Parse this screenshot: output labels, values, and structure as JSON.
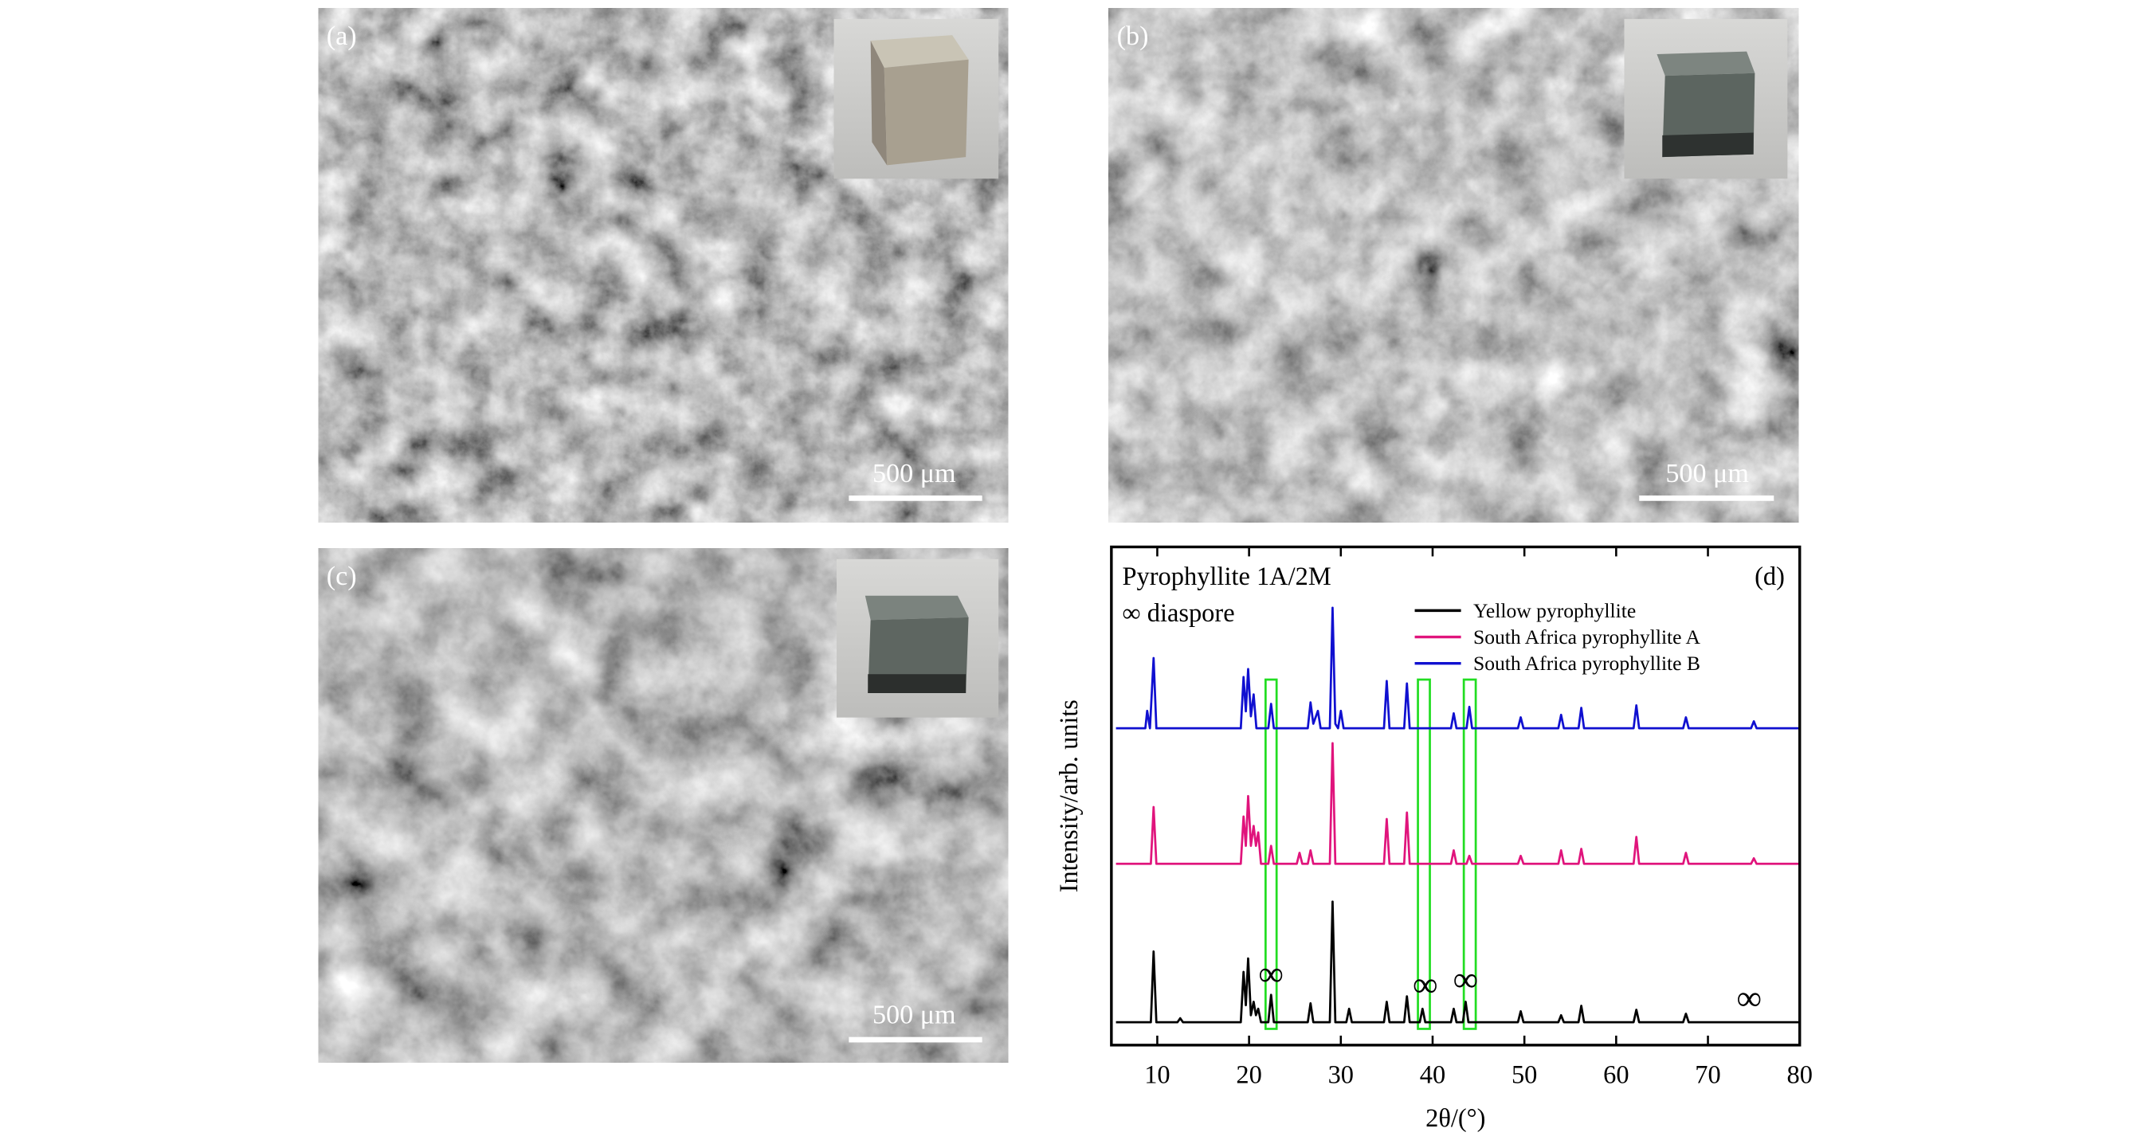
{
  "panels": [
    {
      "label": "(a)",
      "scale_bar": "500 μm"
    },
    {
      "label": "(b)",
      "scale_bar": "500 μm"
    },
    {
      "label": "(c)",
      "scale_bar": "500 μm"
    }
  ],
  "chart_data": {
    "type": "line",
    "title": "Pyrophyllite 1A/2M",
    "subtitle": "∞ diaspore",
    "panel_label": "(d)",
    "x_label": "2θ/(°)",
    "y_label": "Intensity/arb. units",
    "xlim": [
      5,
      80
    ],
    "ylim": [
      0,
      100
    ],
    "xticks": [
      10,
      20,
      30,
      40,
      50,
      60,
      70,
      80
    ],
    "legend": "top-right",
    "highlight_bands": [
      [
        21.8,
        23.0
      ],
      [
        38.4,
        39.7
      ],
      [
        43.4,
        44.7
      ]
    ],
    "annotations": [
      {
        "text": "∞",
        "x": 22.4,
        "y": 13.6
      },
      {
        "text": "∞",
        "x": 39.2,
        "y": 11.4
      },
      {
        "text": "∞",
        "x": 43.6,
        "y": 12.5
      },
      {
        "text": "∞",
        "x": 74.5,
        "y": 8.7
      }
    ],
    "series": [
      {
        "name": "Yellow pyrophyllite",
        "color": "#000000",
        "x": [
          5.5,
          9.3,
          9.6,
          9.9,
          12.2,
          12.5,
          12.8,
          19.1,
          19.4,
          19.65,
          19.9,
          20.2,
          20.5,
          20.75,
          21.0,
          21.3,
          22.1,
          22.4,
          22.7,
          26.4,
          26.7,
          27.0,
          28.8,
          29.1,
          29.4,
          30.6,
          30.9,
          31.2,
          34.7,
          35.0,
          35.3,
          36.9,
          37.2,
          37.5,
          38.6,
          38.9,
          39.2,
          42.0,
          42.3,
          42.6,
          43.3,
          43.6,
          43.9,
          49.3,
          49.6,
          49.9,
          53.7,
          54.0,
          54.3,
          55.9,
          56.2,
          56.5,
          61.9,
          62.2,
          62.5,
          67.3,
          67.6,
          67.9,
          80
        ],
        "values": [
          4.6,
          4.6,
          18.8,
          4.6,
          4.6,
          5.4,
          4.6,
          4.6,
          14.7,
          8,
          17.4,
          6,
          8.7,
          6,
          7.3,
          4.6,
          4.6,
          10.1,
          4.6,
          4.6,
          8.4,
          4.6,
          4.6,
          28.8,
          4.6,
          4.6,
          7.3,
          4.6,
          4.6,
          8.7,
          4.6,
          4.6,
          9.8,
          4.6,
          4.6,
          7.3,
          4.6,
          4.6,
          7.3,
          4.6,
          4.6,
          8.7,
          4.6,
          4.6,
          6.8,
          4.6,
          4.6,
          6.0,
          4.6,
          4.6,
          7.9,
          4.6,
          4.6,
          7.1,
          4.6,
          4.6,
          6.3,
          4.6,
          4.6
        ]
      },
      {
        "name": "South Africa pyrophyllite A",
        "color": "#e0147c",
        "x": [
          5.5,
          9.3,
          9.6,
          9.9,
          19.1,
          19.4,
          19.65,
          19.9,
          20.2,
          20.5,
          20.75,
          21.0,
          21.3,
          22.1,
          22.4,
          22.7,
          25.2,
          25.5,
          25.8,
          26.4,
          26.7,
          27.0,
          28.8,
          29.1,
          29.4,
          34.7,
          35.0,
          35.3,
          36.9,
          37.2,
          37.5,
          42.0,
          42.3,
          42.6,
          43.7,
          44.0,
          44.3,
          49.3,
          49.6,
          49.9,
          53.7,
          54.0,
          54.3,
          55.9,
          56.2,
          56.5,
          61.9,
          62.2,
          62.5,
          67.3,
          67.6,
          67.9,
          74.7,
          75.0,
          75.3,
          80
        ],
        "values": [
          36.4,
          36.4,
          47.8,
          36.4,
          36.4,
          45.9,
          40,
          50.0,
          40,
          44.0,
          40,
          42.7,
          36.4,
          36.4,
          40.0,
          36.4,
          36.4,
          38.6,
          36.4,
          36.4,
          39.1,
          36.4,
          36.4,
          60.6,
          36.4,
          36.4,
          45.4,
          36.4,
          36.4,
          46.7,
          36.4,
          36.4,
          39.1,
          36.4,
          36.4,
          38.0,
          36.4,
          36.4,
          38.0,
          36.4,
          36.4,
          39.1,
          36.4,
          36.4,
          39.4,
          36.4,
          36.4,
          41.8,
          36.4,
          36.4,
          38.6,
          36.4,
          36.4,
          37.5,
          36.4,
          36.4
        ]
      },
      {
        "name": "South Africa pyrophyllite B",
        "color": "#1010d0",
        "x": [
          5.5,
          8.7,
          8.9,
          9.2,
          9.6,
          9.9,
          19.1,
          19.4,
          19.65,
          19.9,
          20.2,
          20.5,
          20.8,
          22.1,
          22.4,
          22.7,
          26.4,
          26.7,
          27.0,
          27.5,
          27.8,
          28.8,
          29.1,
          29.4,
          29.7,
          30.0,
          30.3,
          34.7,
          35.0,
          35.3,
          36.9,
          37.2,
          37.5,
          42.0,
          42.3,
          42.6,
          43.7,
          44.0,
          44.3,
          49.3,
          49.6,
          49.9,
          53.7,
          54.0,
          54.3,
          55.9,
          56.2,
          56.5,
          61.9,
          62.2,
          62.5,
          67.3,
          67.6,
          67.9,
          74.7,
          75.0,
          75.3,
          80
        ],
        "values": [
          63.6,
          63.6,
          67.1,
          63.6,
          77.7,
          63.6,
          63.6,
          73.9,
          67,
          75.5,
          66,
          70.4,
          63.6,
          63.6,
          68.5,
          63.6,
          63.6,
          68.8,
          64.5,
          67.1,
          63.6,
          63.6,
          87.8,
          64.5,
          63.6,
          67.1,
          63.6,
          63.6,
          73.1,
          63.6,
          63.6,
          72.6,
          63.6,
          63.6,
          66.6,
          63.6,
          63.6,
          67.9,
          63.6,
          63.6,
          65.8,
          63.6,
          63.6,
          66.3,
          63.6,
          63.6,
          67.7,
          63.6,
          63.6,
          68.2,
          63.6,
          63.6,
          65.8,
          63.6,
          63.6,
          65.0,
          63.6,
          63.6
        ]
      }
    ]
  }
}
